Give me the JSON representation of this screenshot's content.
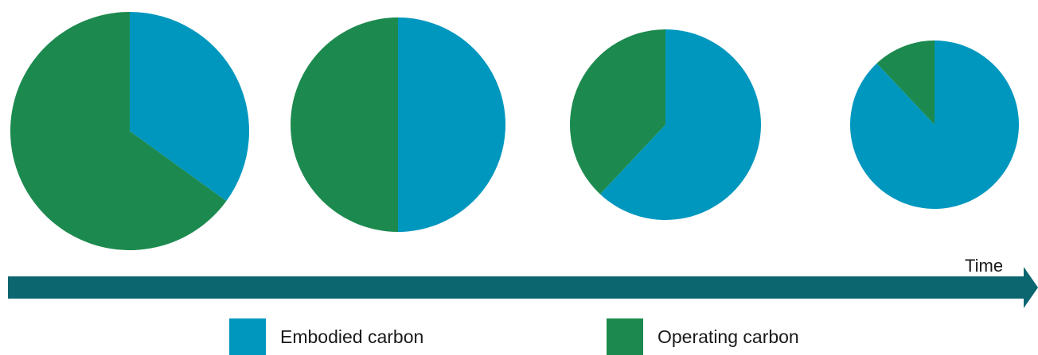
{
  "chart_data": {
    "type": "pie",
    "title": "",
    "xlabel": "Time",
    "ylabel": "",
    "legend_position": "bottom",
    "grid": false,
    "series": [
      {
        "name": "Embodied carbon",
        "color": "#0097BF",
        "values": [
          0.35,
          0.5,
          0.62,
          0.88
        ]
      },
      {
        "name": "Operating carbon",
        "color": "#1C8A4E",
        "values": [
          0.65,
          0.5,
          0.38,
          0.12
        ]
      }
    ],
    "pies": [
      {
        "embodied": 0.35,
        "operating": 0.65
      },
      {
        "embodied": 0.5,
        "operating": 0.5
      },
      {
        "embodied": 0.62,
        "operating": 0.38
      },
      {
        "embodied": 0.88,
        "operating": 0.12
      }
    ],
    "axis_color": "#0B6670"
  }
}
